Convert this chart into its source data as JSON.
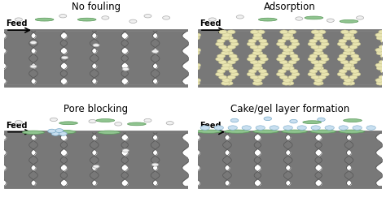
{
  "background_color": "#ffffff",
  "titles": [
    "No fouling",
    "Adsorption",
    "Pore blocking",
    "Cake/gel layer formation"
  ],
  "title_fontsize": 8.5,
  "feed_fontsize": 7,
  "membrane_color": "#787878",
  "membrane_edge_color": "#555555",
  "small_particle_color": "#c8dff0",
  "small_particle_edge": "#7aaac8",
  "small_hollow_color": "#f0f0f0",
  "small_hollow_edge": "#aaaaaa",
  "large_particle_color": "#8fc48f",
  "large_particle_edge": "#5a985a",
  "adsorption_particle_color": "#e8e4b0",
  "adsorption_particle_edge": "#c8c490",
  "text_color": "#000000",
  "bar_color": "#787878",
  "bar_edge": "#555555"
}
